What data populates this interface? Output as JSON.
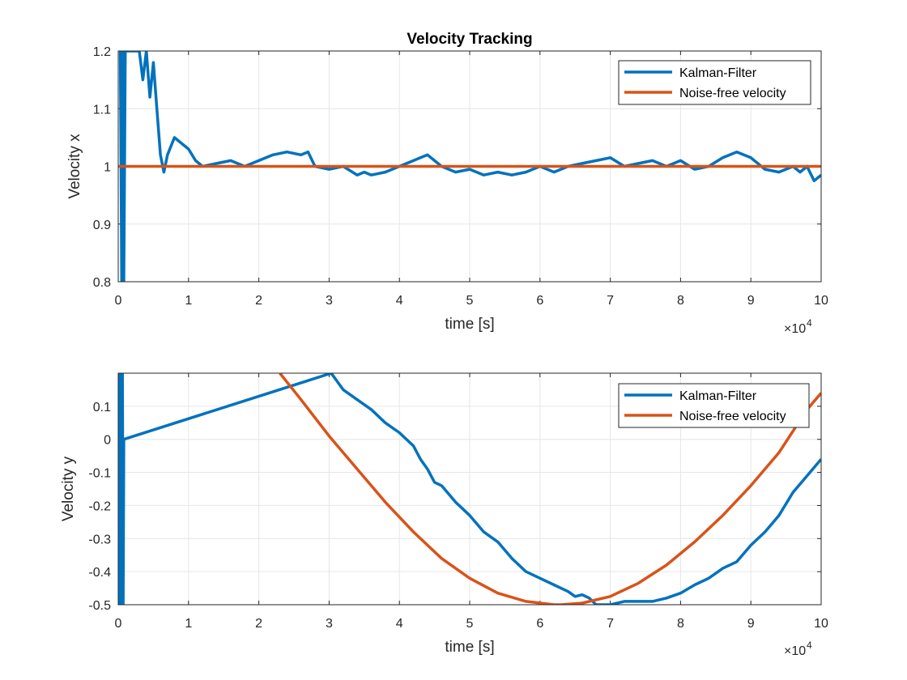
{
  "chart_data": [
    {
      "type": "line",
      "title": "Velocity Tracking",
      "xlabel": "time [s]",
      "ylabel": "Velocity x",
      "xlim": [
        0,
        100000
      ],
      "ylim": [
        0.8,
        1.2
      ],
      "xticks": [
        "0",
        "1",
        "2",
        "3",
        "4",
        "5",
        "6",
        "7",
        "8",
        "9",
        "10"
      ],
      "yticks": [
        "0.8",
        "0.9",
        "1",
        "1.1",
        "1.2"
      ],
      "x_exponent_base": "×10",
      "x_exponent_power": "4",
      "grid": true,
      "legend_position": "top-right",
      "series": [
        {
          "name": "Kalman-Filter",
          "color": "#0072BD",
          "x": [
            300,
            500,
            700,
            800,
            1000,
            2000,
            3000,
            3500,
            4000,
            4500,
            5000,
            5500,
            6000,
            6500,
            7000,
            8000,
            9000,
            10000,
            11000,
            12000,
            14000,
            16000,
            18000,
            20000,
            22000,
            24000,
            26000,
            27000,
            28000,
            30000,
            32000,
            34000,
            35000,
            36000,
            38000,
            40000,
            42000,
            43000,
            44000,
            45000,
            46000,
            48000,
            50000,
            52000,
            54000,
            56000,
            58000,
            60000,
            62000,
            64000,
            66000,
            68000,
            70000,
            72000,
            74000,
            76000,
            78000,
            80000,
            82000,
            84000,
            86000,
            88000,
            89000,
            90000,
            92000,
            94000,
            96000,
            97000,
            98000,
            99000,
            100000
          ],
          "y": [
            1.2,
            0.8,
            1.2,
            0.8,
            1.2,
            1.2,
            1.2,
            1.15,
            1.2,
            1.12,
            1.18,
            1.1,
            1.02,
            0.99,
            1.02,
            1.05,
            1.04,
            1.03,
            1.01,
            1.0,
            1.005,
            1.01,
            1.0,
            1.01,
            1.02,
            1.025,
            1.02,
            1.025,
            1.0,
            0.995,
            1.0,
            0.985,
            0.99,
            0.985,
            0.99,
            1.0,
            1.01,
            1.015,
            1.02,
            1.01,
            1.0,
            0.99,
            0.995,
            0.985,
            0.99,
            0.985,
            0.99,
            1.0,
            0.99,
            1.0,
            1.005,
            1.01,
            1.015,
            1.0,
            1.005,
            1.01,
            1.0,
            1.01,
            0.995,
            1.0,
            1.015,
            1.025,
            1.02,
            1.015,
            0.995,
            0.99,
            1.0,
            0.99,
            1.0,
            0.975,
            0.985
          ]
        },
        {
          "name": "Noise-free velocity",
          "color": "#D95319",
          "x": [
            0,
            100000
          ],
          "y": [
            1.0,
            1.0
          ]
        }
      ]
    },
    {
      "type": "line",
      "title": "",
      "xlabel": "time [s]",
      "ylabel": "Velocity y",
      "xlim": [
        0,
        100000
      ],
      "ylim": [
        -0.5,
        0.2
      ],
      "xticks": [
        "0",
        "1",
        "2",
        "3",
        "4",
        "5",
        "6",
        "7",
        "8",
        "9",
        "10"
      ],
      "yticks": [
        "-0.5",
        "-0.4",
        "-0.3",
        "-0.2",
        "-0.1",
        "0",
        "0.1"
      ],
      "x_exponent_base": "×10",
      "x_exponent_power": "4",
      "grid": true,
      "legend_position": "top-right",
      "series": [
        {
          "name": "Kalman-Filter",
          "color": "#0072BD",
          "x": [
            0,
            100,
            200,
            300,
            400,
            500,
            600,
            700,
            800,
            30300,
            32000,
            34000,
            36000,
            38000,
            40000,
            42000,
            43000,
            44000,
            45000,
            46000,
            48000,
            50000,
            52000,
            54000,
            56000,
            58000,
            60000,
            62000,
            63000,
            64000,
            65000,
            66000,
            67000,
            68000,
            70000,
            72000,
            74000,
            76000,
            78000,
            80000,
            82000,
            84000,
            86000,
            88000,
            90000,
            92000,
            94000,
            96000,
            98000,
            100000
          ],
          "y": [
            0.2,
            -0.5,
            0.2,
            -0.5,
            0.2,
            -0.5,
            0.2,
            -0.5,
            0.0,
            0.2,
            0.15,
            0.12,
            0.09,
            0.05,
            0.02,
            -0.02,
            -0.06,
            -0.09,
            -0.13,
            -0.14,
            -0.19,
            -0.23,
            -0.28,
            -0.31,
            -0.36,
            -0.4,
            -0.42,
            -0.44,
            -0.45,
            -0.46,
            -0.475,
            -0.47,
            -0.48,
            -0.5,
            -0.5,
            -0.49,
            -0.49,
            -0.49,
            -0.48,
            -0.465,
            -0.44,
            -0.42,
            -0.39,
            -0.37,
            -0.32,
            -0.28,
            -0.23,
            -0.16,
            -0.11,
            -0.06
          ]
        },
        {
          "name": "Noise-free velocity",
          "color": "#D95319",
          "x": [
            23000,
            26000,
            30000,
            34000,
            38000,
            42000,
            46000,
            50000,
            54000,
            58000,
            62000,
            63000,
            66000,
            70000,
            74000,
            78000,
            82000,
            86000,
            90000,
            94000,
            98000,
            100000
          ],
          "y": [
            0.2,
            0.12,
            0.01,
            -0.09,
            -0.19,
            -0.28,
            -0.36,
            -0.42,
            -0.465,
            -0.49,
            -0.5,
            -0.5,
            -0.495,
            -0.475,
            -0.435,
            -0.38,
            -0.31,
            -0.23,
            -0.14,
            -0.04,
            0.09,
            0.14
          ]
        }
      ]
    }
  ]
}
